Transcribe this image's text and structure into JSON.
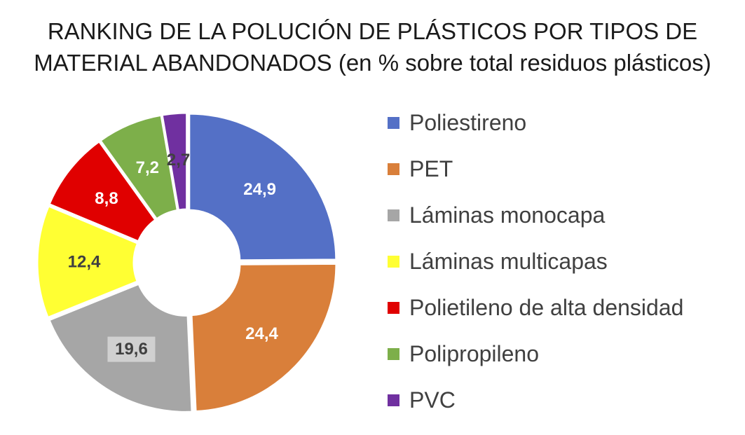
{
  "chart_data": {
    "type": "pie",
    "title": "RANKING DE LA POLUCIÓN DE PLÁSTICOS POR TIPOS DE MATERIAL ABANDONADOS (en % sobre total residuos plásticos)",
    "title_lines": [
      "RANKING DE LA POLUCIÓN DE PLÁSTICOS POR TIPOS DE",
      "MATERIAL ABANDONADOS (en % sobre total residuos plásticos)"
    ],
    "style": "donut",
    "legend_position": "right",
    "categories": [
      "Poliestireno",
      "PET",
      "Láminas monocapa",
      "Láminas multicapas",
      "Polietileno de alta densidad",
      "Polipropileno",
      "PVC"
    ],
    "values": [
      24.9,
      24.4,
      19.6,
      12.4,
      8.8,
      7.2,
      2.7
    ],
    "value_labels": [
      "24,9",
      "24,4",
      "19,6",
      "12,4",
      "8,8",
      "7,2",
      "2,7"
    ],
    "colors": [
      "#5470C6",
      "#D97F3A",
      "#A6A6A6",
      "#FFFF33",
      "#E00000",
      "#7DAF4A",
      "#7030A0"
    ],
    "label_colors": [
      "#ffffff",
      "#ffffff",
      "#404040",
      "#404040",
      "#ffffff",
      "#ffffff",
      "#404040"
    ]
  }
}
